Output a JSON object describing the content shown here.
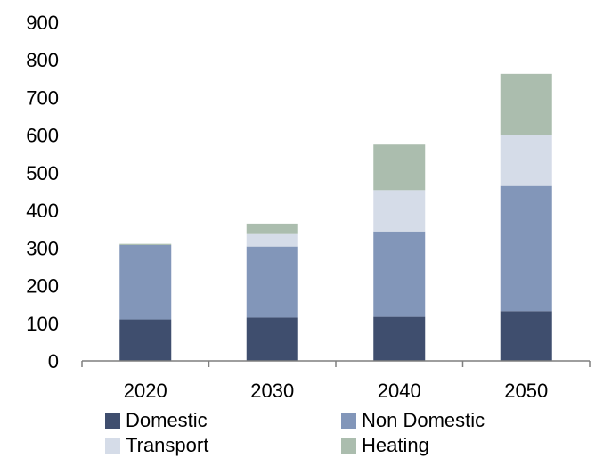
{
  "chart_data": {
    "type": "bar",
    "stacked": true,
    "categories": [
      "2020",
      "2030",
      "2040",
      "2050"
    ],
    "series": [
      {
        "name": "Domestic",
        "color": "#3f4e6e",
        "values": [
          110,
          115,
          117,
          132
        ]
      },
      {
        "name": "Non Domestic",
        "color": "#8296b9",
        "values": [
          198,
          189,
          227,
          333
        ]
      },
      {
        "name": "Transport",
        "color": "#d5dce8",
        "values": [
          0,
          33,
          110,
          135
        ]
      },
      {
        "name": "Heating",
        "color": "#abbdae",
        "values": [
          3,
          28,
          121,
          163
        ]
      }
    ],
    "ylim": [
      0,
      900
    ],
    "yticks": [
      0,
      100,
      200,
      300,
      400,
      500,
      600,
      700,
      800,
      900
    ],
    "grid": false,
    "legend_position": "bottom"
  }
}
